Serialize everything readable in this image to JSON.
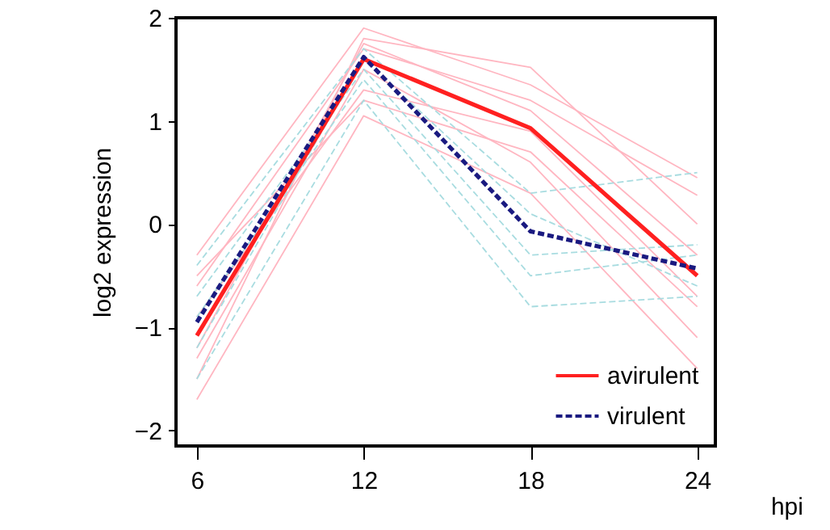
{
  "chart_data": {
    "type": "line",
    "xlabel": "hpi",
    "ylabel": "log2 expression",
    "x": [
      6,
      12,
      18,
      24
    ],
    "xlim": [
      5.25,
      24.65
    ],
    "xticks": [
      6,
      12,
      18,
      24
    ],
    "ylim": [
      -2.15,
      2
    ],
    "yticks": [
      -2,
      -1,
      0,
      1,
      2
    ],
    "grid": false,
    "legend": "bottom right",
    "series": [
      {
        "color": "#ffb6c1",
        "line_style": "solid",
        "values": [
          -0.3,
          1.9,
          1.35,
          0.45
        ]
      },
      {
        "color": "#ffb6c1",
        "line_style": "solid",
        "values": [
          -1.7,
          1.05,
          0.3,
          -1.4
        ]
      },
      {
        "color": "#ffb6c1",
        "line_style": "solid",
        "values": [
          -1.5,
          1.8,
          1.52,
          0.0
        ]
      },
      {
        "color": "#ffb6c1",
        "line_style": "solid",
        "values": [
          -0.6,
          1.7,
          1.2,
          0.28
        ]
      },
      {
        "color": "#ffb6c1",
        "line_style": "solid",
        "values": [
          -1.3,
          1.5,
          0.6,
          -1.1
        ]
      },
      {
        "color": "#ffb6c1",
        "line_style": "solid",
        "values": [
          -0.9,
          1.3,
          0.9,
          -0.7
        ]
      },
      {
        "color": "#ffb6c1",
        "line_style": "solid",
        "values": [
          -1.2,
          1.75,
          1.1,
          -0.3
        ]
      },
      {
        "color": "#ffb6c1",
        "line_style": "solid",
        "values": [
          -0.5,
          1.2,
          0.7,
          -0.8
        ]
      },
      {
        "color": "#a8dce0",
        "line_style": "dashed",
        "values": [
          -0.4,
          1.7,
          0.3,
          0.5
        ]
      },
      {
        "color": "#a8dce0",
        "line_style": "dashed",
        "values": [
          -1.5,
          1.2,
          -0.8,
          -0.7
        ]
      },
      {
        "color": "#a8dce0",
        "line_style": "dashed",
        "values": [
          -0.7,
          1.5,
          -0.3,
          -0.2
        ]
      },
      {
        "color": "#a8dce0",
        "line_style": "dashed",
        "values": [
          -1.2,
          1.6,
          0.1,
          -0.6
        ]
      },
      {
        "color": "#a8dce0",
        "line_style": "dashed",
        "values": [
          -0.9,
          1.4,
          -0.5,
          -0.3
        ]
      },
      {
        "name": "avirulent",
        "color": "#ff2020",
        "line_style": "solid",
        "values": [
          -1.08,
          1.6,
          0.93,
          -0.5
        ]
      },
      {
        "name": "virulent",
        "color": "#1a1a80",
        "line_style": "dashed",
        "values": [
          -0.95,
          1.62,
          -0.07,
          -0.43
        ]
      }
    ]
  }
}
